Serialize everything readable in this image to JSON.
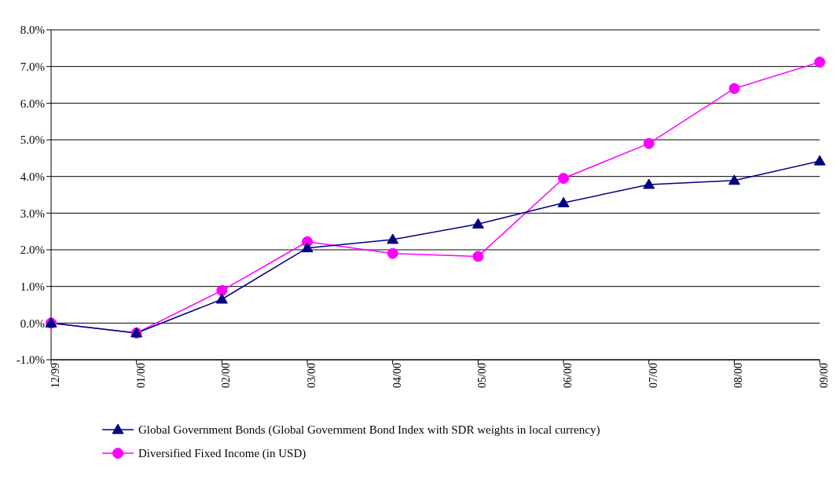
{
  "chart_data": {
    "type": "line",
    "categories": [
      "12/99",
      "01/00",
      "02/00",
      "03/00",
      "04/00",
      "05/00",
      "06/00",
      "07/00",
      "08/00",
      "09/00"
    ],
    "series": [
      {
        "name": "Global Government Bonds (Global Government Bond Index with SDR weights in local currency)",
        "color": "#000080",
        "marker": "triangle",
        "values": [
          0,
          -0.27,
          0.65,
          2.05,
          2.28,
          2.7,
          3.28,
          3.78,
          3.89,
          4.42
        ]
      },
      {
        "name": "Diversified Fixed Income (in USD)",
        "color": "#ff00ff",
        "marker": "circle",
        "values": [
          0,
          -0.27,
          0.89,
          2.22,
          1.9,
          1.82,
          3.95,
          4.9,
          6.4,
          7.12
        ]
      }
    ],
    "ylim": [
      -1,
      8
    ],
    "yticks": [
      {
        "value": -1,
        "label": "-1.0%"
      },
      {
        "value": 0,
        "label": "0.0%"
      },
      {
        "value": 1,
        "label": "1.0%"
      },
      {
        "value": 2,
        "label": "2.0%"
      },
      {
        "value": 3,
        "label": "3.0%"
      },
      {
        "value": 4,
        "label": "4.0%"
      },
      {
        "value": 5,
        "label": "5.0%"
      },
      {
        "value": 6,
        "label": "6.0%"
      },
      {
        "value": 7,
        "label": "7.0%"
      },
      {
        "value": 8,
        "label": "8.0%"
      }
    ],
    "grid": "y",
    "legend": "bottom",
    "line_style": "solid"
  }
}
